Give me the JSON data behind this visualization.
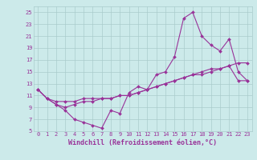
{
  "xlabel": "Windchill (Refroidissement éolien,°C)",
  "ylabel": "",
  "bg_color": "#cceaea",
  "grid_color": "#aacccc",
  "line_color": "#993399",
  "marker": "D",
  "markersize": 2.0,
  "linewidth": 0.8,
  "xlim": [
    -0.5,
    23.5
  ],
  "ylim": [
    5,
    26
  ],
  "xticks": [
    0,
    1,
    2,
    3,
    4,
    5,
    6,
    7,
    8,
    9,
    10,
    11,
    12,
    13,
    14,
    15,
    16,
    17,
    18,
    19,
    20,
    21,
    22,
    23
  ],
  "yticks": [
    5,
    7,
    9,
    11,
    13,
    15,
    17,
    19,
    21,
    23,
    25
  ],
  "tick_fontsize": 5.0,
  "xlabel_fontsize": 6.0,
  "series": [
    {
      "x": [
        0,
        1,
        2,
        3,
        4,
        5,
        6,
        7,
        8,
        9,
        10,
        11,
        12,
        13,
        14,
        15,
        16,
        17,
        18,
        19,
        20,
        21,
        22,
        23
      ],
      "y": [
        12.0,
        10.5,
        9.5,
        8.5,
        7.0,
        6.5,
        6.0,
        5.5,
        8.5,
        8.0,
        11.5,
        12.5,
        12.0,
        14.5,
        15.0,
        17.5,
        24.0,
        25.0,
        21.0,
        19.5,
        18.5,
        20.5,
        15.0,
        13.5
      ]
    },
    {
      "x": [
        0,
        1,
        2,
        3,
        4,
        5,
        6,
        7,
        8,
        9,
        10,
        11,
        12,
        13,
        14,
        15,
        16,
        17,
        18,
        19,
        20,
        21,
        22,
        23
      ],
      "y": [
        12.0,
        10.5,
        10.0,
        10.0,
        10.0,
        10.5,
        10.5,
        10.5,
        10.5,
        11.0,
        11.0,
        11.5,
        12.0,
        12.5,
        13.0,
        13.5,
        14.0,
        14.5,
        15.0,
        15.5,
        15.5,
        16.0,
        16.5,
        16.5
      ]
    },
    {
      "x": [
        0,
        1,
        2,
        3,
        4,
        5,
        6,
        7,
        8,
        9,
        10,
        11,
        12,
        13,
        14,
        15,
        16,
        17,
        18,
        19,
        20,
        21,
        22,
        23
      ],
      "y": [
        12.0,
        10.5,
        9.5,
        9.0,
        9.5,
        10.0,
        10.0,
        10.5,
        10.5,
        11.0,
        11.0,
        11.5,
        12.0,
        12.5,
        13.0,
        13.5,
        14.0,
        14.5,
        14.5,
        15.0,
        15.5,
        16.0,
        13.5,
        13.5
      ]
    }
  ]
}
